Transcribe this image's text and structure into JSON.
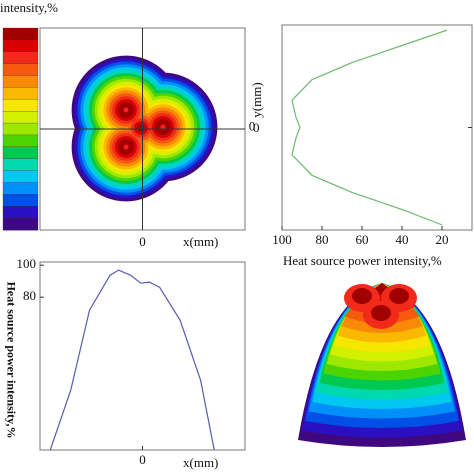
{
  "chart_data": [
    {
      "type": "contour",
      "title": "intensity,%",
      "xlabel": "x(mm)",
      "ylabel": "y(mm)",
      "xlim": [
        -6,
        6
      ],
      "ylim": [
        -6,
        6
      ],
      "xticks": [
        0
      ],
      "yticks": [
        0
      ],
      "colors": [
        "#a00000",
        "#d80000",
        "#f22a1a",
        "#f55a10",
        "#f88a08",
        "#fbb800",
        "#f6e600",
        "#d2f000",
        "#9ee800",
        "#4cd400",
        "#00c850",
        "#00d8b0",
        "#00c8f0",
        "#0090f8",
        "#0050e8",
        "#2a10c0",
        "#400880"
      ]
    },
    {
      "type": "line",
      "xlabel": "Heat source power intensity,%",
      "ylabel": "y(mm)",
      "xlim": [
        100,
        5
      ],
      "ylim": [
        -6,
        6
      ],
      "xticks": [
        100,
        80,
        60,
        40,
        20
      ],
      "yticks": [
        0
      ],
      "series": [
        {
          "color": "#6fb86f",
          "x": [
            17.5,
            40,
            65,
            85,
            95,
            93,
            91,
            93,
            95,
            85,
            65,
            40,
            20
          ],
          "values": [
            5.7,
            4.8,
            3.8,
            2.8,
            1.6,
            0.6,
            0,
            -0.6,
            -1.6,
            -2.8,
            -3.8,
            -4.8,
            -5.7
          ]
        }
      ]
    },
    {
      "type": "line",
      "xlabel": "x(mm)",
      "ylabel": "Heat source power intensity,%",
      "xlim": [
        -6,
        6
      ],
      "ylim": [
        -15.6,
        102
      ],
      "xticks": [
        0
      ],
      "yticks": [
        100,
        80
      ],
      "series": [
        {
          "color": "#5a5ab0",
          "x": [
            -5.4,
            -4.2,
            -3.1,
            -1.9,
            -1.4,
            -0.7,
            -0.1,
            0.4,
            1.0,
            2.2,
            3.4,
            4.2
          ],
          "values": [
            -15.6,
            21.9,
            71.9,
            93.75,
            96.9,
            93.75,
            88.75,
            89.4,
            86.25,
            65.6,
            28.1,
            -15.6
          ]
        }
      ]
    }
  ]
}
